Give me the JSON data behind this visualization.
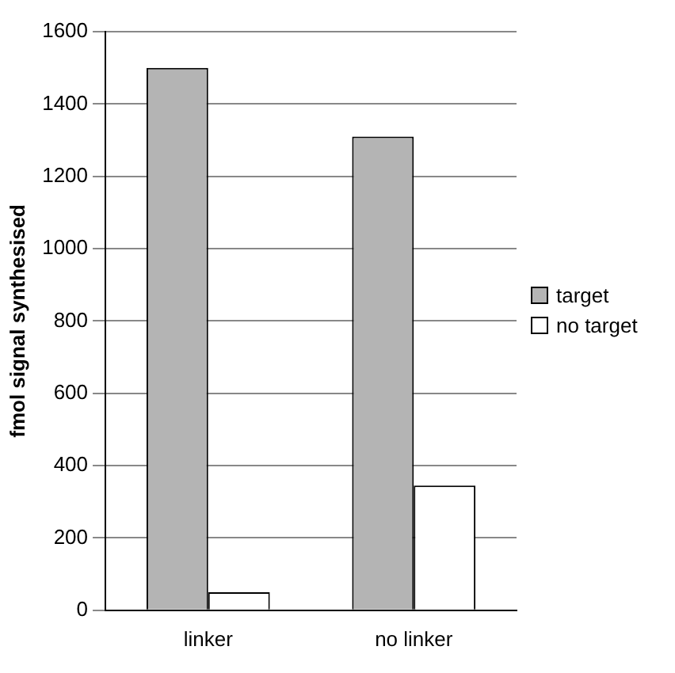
{
  "chart_data": {
    "type": "bar",
    "ylabel": "fmol signal synthesised",
    "categories": [
      "linker",
      "no linker"
    ],
    "series": [
      {
        "name": "target",
        "color": "#b4b4b4",
        "values": [
          1500,
          1310
        ]
      },
      {
        "name": "no target",
        "color": "#ffffff",
        "values": [
          50,
          345
        ]
      }
    ],
    "ylim": [
      0,
      1600
    ],
    "yticks": [
      0,
      200,
      400,
      600,
      800,
      1000,
      1200,
      1400,
      1600
    ],
    "grid": "y",
    "legend": "right"
  }
}
